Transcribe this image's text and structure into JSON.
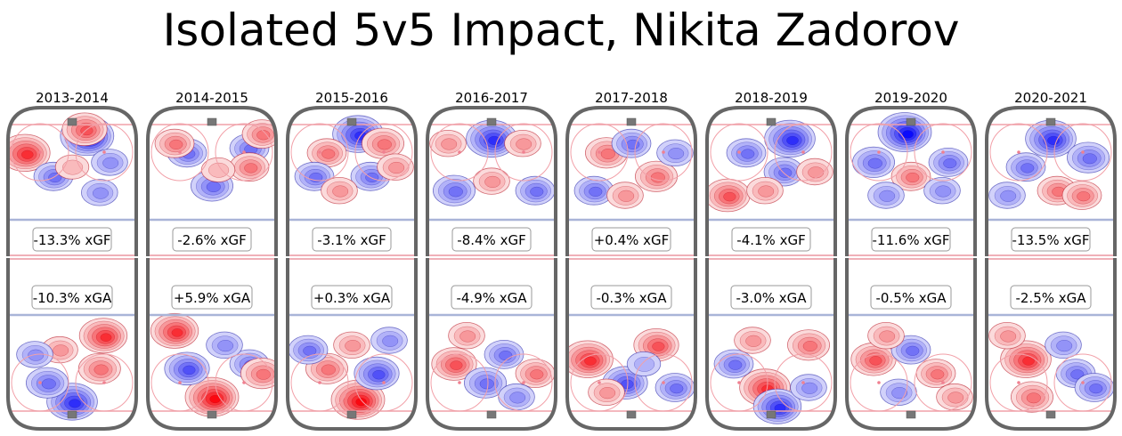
{
  "chart_data": {
    "type": "heatmap",
    "title": "Isolated 5v5 Impact, Nikita Zadorov",
    "description": "Small-multiple hockey rink shot-impact heatmaps per season; top half offensive (xGF), bottom half defensive (xGA). Red = more shots than average, blue = fewer.",
    "colors": {
      "positive": "#e8000b",
      "negative": "#1a1aff",
      "rink_border": "#666666",
      "blue_line": "#a9b4d8",
      "goal_line": "#f0a0a8"
    },
    "seasons": [
      {
        "season": "2013-2014",
        "xGF": "-13.3% xGF",
        "xGA": "-10.3% xGA",
        "xGF_value": -13.3,
        "xGA_value": -10.3
      },
      {
        "season": "2014-2015",
        "xGF": "-2.6% xGF",
        "xGA": "+5.9% xGA",
        "xGF_value": -2.6,
        "xGA_value": 5.9
      },
      {
        "season": "2015-2016",
        "xGF": "-3.1% xGF",
        "xGA": "+0.3% xGA",
        "xGF_value": -3.1,
        "xGA_value": 0.3
      },
      {
        "season": "2016-2017",
        "xGF": "-8.4% xGF",
        "xGA": "-4.9% xGA",
        "xGF_value": -8.4,
        "xGA_value": -4.9
      },
      {
        "season": "2017-2018",
        "xGF": "+0.4% xGF",
        "xGA": "-0.3% xGA",
        "xGF_value": 0.4,
        "xGA_value": -0.3
      },
      {
        "season": "2018-2019",
        "xGF": "-4.1% xGF",
        "xGA": "-3.0% xGA",
        "xGF_value": -4.1,
        "xGA_value": -3.0
      },
      {
        "season": "2019-2020",
        "xGF": "-11.6% xGF",
        "xGA": "-0.5% xGA",
        "xGF_value": -11.6,
        "xGA_value": -0.5
      },
      {
        "season": "2020-2021",
        "xGF": "-13.5% xGF",
        "xGA": "-2.5% xGA",
        "xGF_value": -13.5,
        "xGA_value": -2.5
      }
    ],
    "blobs": [
      {
        "top": [
          [
            0.62,
            0.12,
            -1
          ],
          [
            0.12,
            0.3,
            0.9
          ],
          [
            0.6,
            0.05,
            0.7
          ],
          [
            0.35,
            0.55,
            -0.5
          ],
          [
            0.72,
            0.72,
            -0.4
          ],
          [
            0.8,
            0.4,
            -0.4
          ],
          [
            0.5,
            0.45,
            0.3
          ]
        ],
        "bottom": [
          [
            0.5,
            0.9,
            -0.9
          ],
          [
            0.75,
            0.2,
            0.8
          ],
          [
            0.3,
            0.7,
            -0.6
          ],
          [
            0.72,
            0.55,
            0.6
          ],
          [
            0.4,
            0.35,
            0.4
          ],
          [
            0.2,
            0.4,
            -0.4
          ]
        ]
      },
      {
        "top": [
          [
            0.3,
            0.3,
            -0.5
          ],
          [
            0.8,
            0.25,
            -0.5
          ],
          [
            0.5,
            0.65,
            -0.6
          ],
          [
            0.2,
            0.2,
            0.5
          ],
          [
            0.8,
            0.45,
            0.5
          ],
          [
            0.9,
            0.1,
            0.5
          ],
          [
            0.55,
            0.48,
            0.3
          ]
        ],
        "bottom": [
          [
            0.5,
            0.85,
            1
          ],
          [
            0.2,
            0.15,
            0.8
          ],
          [
            0.3,
            0.55,
            -0.7
          ],
          [
            0.8,
            0.5,
            -0.5
          ],
          [
            0.9,
            0.6,
            0.6
          ],
          [
            0.6,
            0.3,
            -0.4
          ]
        ]
      },
      {
        "top": [
          [
            0.55,
            0.1,
            -0.9
          ],
          [
            0.3,
            0.3,
            0.5
          ],
          [
            0.75,
            0.2,
            0.6
          ],
          [
            0.2,
            0.55,
            -0.5
          ],
          [
            0.65,
            0.55,
            -0.5
          ],
          [
            0.85,
            0.45,
            0.4
          ],
          [
            0.4,
            0.7,
            0.4
          ]
        ],
        "bottom": [
          [
            0.55,
            0.88,
            1
          ],
          [
            0.3,
            0.55,
            0.6
          ],
          [
            0.7,
            0.6,
            -0.7
          ],
          [
            0.15,
            0.35,
            -0.5
          ],
          [
            0.8,
            0.25,
            -0.4
          ],
          [
            0.5,
            0.3,
            0.4
          ]
        ]
      },
      {
        "top": [
          [
            0.5,
            0.15,
            -0.9
          ],
          [
            0.15,
            0.2,
            0.4
          ],
          [
            0.75,
            0.2,
            0.4
          ],
          [
            0.2,
            0.7,
            -0.6
          ],
          [
            0.85,
            0.7,
            -0.5
          ],
          [
            0.5,
            0.6,
            0.4
          ]
        ],
        "bottom": [
          [
            0.2,
            0.5,
            0.7
          ],
          [
            0.6,
            0.4,
            -0.5
          ],
          [
            0.45,
            0.7,
            -0.6
          ],
          [
            0.85,
            0.6,
            0.5
          ],
          [
            0.7,
            0.85,
            -0.4
          ],
          [
            0.3,
            0.2,
            0.4
          ]
        ]
      },
      {
        "top": [
          [
            0.3,
            0.3,
            0.6
          ],
          [
            0.7,
            0.55,
            0.6
          ],
          [
            0.5,
            0.2,
            -0.5
          ],
          [
            0.2,
            0.7,
            -0.5
          ],
          [
            0.85,
            0.3,
            -0.4
          ],
          [
            0.45,
            0.75,
            0.4
          ]
        ],
        "bottom": [
          [
            0.15,
            0.45,
            0.9
          ],
          [
            0.7,
            0.3,
            0.7
          ],
          [
            0.45,
            0.7,
            -0.7
          ],
          [
            0.85,
            0.75,
            -0.5
          ],
          [
            0.3,
            0.8,
            0.4
          ],
          [
            0.6,
            0.5,
            -0.3
          ]
        ]
      },
      {
        "top": [
          [
            0.65,
            0.15,
            -0.9
          ],
          [
            0.15,
            0.75,
            0.7
          ],
          [
            0.3,
            0.3,
            -0.5
          ],
          [
            0.6,
            0.5,
            -0.5
          ],
          [
            0.85,
            0.5,
            0.4
          ],
          [
            0.45,
            0.7,
            0.4
          ]
        ],
        "bottom": [
          [
            0.45,
            0.75,
            0.9
          ],
          [
            0.55,
            0.95,
            -0.8
          ],
          [
            0.2,
            0.5,
            -0.5
          ],
          [
            0.8,
            0.3,
            0.6
          ],
          [
            0.8,
            0.75,
            -0.4
          ],
          [
            0.35,
            0.25,
            0.4
          ]
        ]
      },
      {
        "top": [
          [
            0.45,
            0.08,
            -1
          ],
          [
            0.5,
            0.55,
            0.5
          ],
          [
            0.2,
            0.4,
            -0.6
          ],
          [
            0.8,
            0.4,
            -0.5
          ],
          [
            0.3,
            0.75,
            -0.4
          ],
          [
            0.75,
            0.7,
            -0.4
          ]
        ],
        "bottom": [
          [
            0.2,
            0.45,
            0.7
          ],
          [
            0.5,
            0.35,
            -0.5
          ],
          [
            0.7,
            0.6,
            0.5
          ],
          [
            0.4,
            0.8,
            -0.4
          ],
          [
            0.85,
            0.85,
            0.4
          ],
          [
            0.3,
            0.2,
            0.4
          ]
        ]
      },
      {
        "top": [
          [
            0.5,
            0.15,
            -0.9
          ],
          [
            0.8,
            0.35,
            -0.6
          ],
          [
            0.3,
            0.45,
            -0.5
          ],
          [
            0.55,
            0.7,
            0.5
          ],
          [
            0.75,
            0.75,
            0.5
          ],
          [
            0.15,
            0.75,
            -0.4
          ]
        ],
        "bottom": [
          [
            0.3,
            0.45,
            0.9
          ],
          [
            0.7,
            0.6,
            -0.5
          ],
          [
            0.35,
            0.85,
            0.6
          ],
          [
            0.85,
            0.75,
            -0.5
          ],
          [
            0.6,
            0.3,
            -0.4
          ],
          [
            0.15,
            0.2,
            0.4
          ]
        ]
      }
    ]
  }
}
